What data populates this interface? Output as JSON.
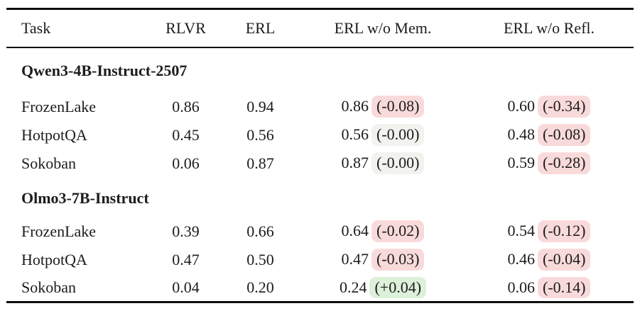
{
  "colors": {
    "negative_bg": "#f9dada",
    "neutral_bg": "#f2f2ef",
    "positive_bg": "#ddf0d9",
    "text": "#1c1c1c",
    "rule": "#0e0e0e"
  },
  "table": {
    "columns": [
      "Task",
      "RLVR",
      "ERL",
      "ERL w/o Mem.",
      "ERL w/o Refl."
    ],
    "sections": [
      {
        "title": "Qwen3-4B-Instruct-2507",
        "rows": [
          {
            "task": "FrozenLake",
            "rlvr": "0.86",
            "erl": "0.94",
            "mem": {
              "value": "0.86",
              "delta": "(-0.08)",
              "tone": "negative"
            },
            "refl": {
              "value": "0.60",
              "delta": "(-0.34)",
              "tone": "negative"
            }
          },
          {
            "task": "HotpotQA",
            "rlvr": "0.45",
            "erl": "0.56",
            "mem": {
              "value": "0.56",
              "delta": "(-0.00)",
              "tone": "neutral"
            },
            "refl": {
              "value": "0.48",
              "delta": "(-0.08)",
              "tone": "negative"
            }
          },
          {
            "task": "Sokoban",
            "rlvr": "0.06",
            "erl": "0.87",
            "mem": {
              "value": "0.87",
              "delta": "(-0.00)",
              "tone": "neutral"
            },
            "refl": {
              "value": "0.59",
              "delta": "(-0.28)",
              "tone": "negative"
            }
          }
        ]
      },
      {
        "title": "Olmo3-7B-Instruct",
        "rows": [
          {
            "task": "FrozenLake",
            "rlvr": "0.39",
            "erl": "0.66",
            "mem": {
              "value": "0.64",
              "delta": "(-0.02)",
              "tone": "negative"
            },
            "refl": {
              "value": "0.54",
              "delta": "(-0.12)",
              "tone": "negative"
            }
          },
          {
            "task": "HotpotQA",
            "rlvr": "0.47",
            "erl": "0.50",
            "mem": {
              "value": "0.47",
              "delta": "(-0.03)",
              "tone": "negative"
            },
            "refl": {
              "value": "0.46",
              "delta": "(-0.04)",
              "tone": "negative"
            }
          },
          {
            "task": "Sokoban",
            "rlvr": "0.04",
            "erl": "0.20",
            "mem": {
              "value": "0.24",
              "delta": "(+0.04)",
              "tone": "positive"
            },
            "refl": {
              "value": "0.06",
              "delta": "(-0.14)",
              "tone": "negative"
            }
          }
        ]
      }
    ]
  }
}
